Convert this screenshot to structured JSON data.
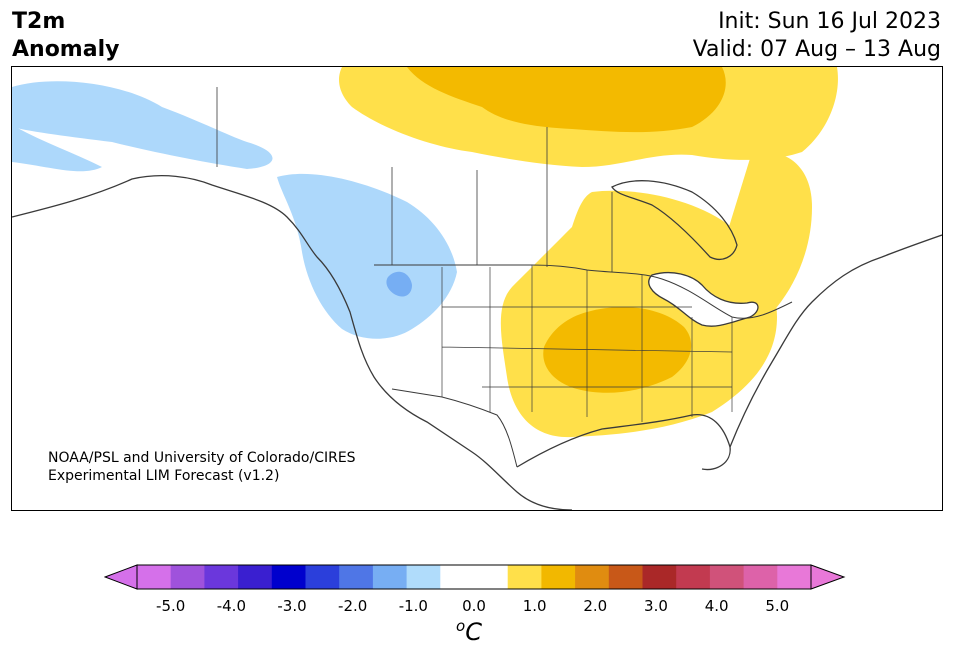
{
  "title": {
    "line1": "T2m",
    "line2": "Anomaly"
  },
  "dates": {
    "init": "Init: Sun 16 Jul 2023",
    "valid": "Valid: 07 Aug – 13 Aug"
  },
  "credit": {
    "line1": "NOAA/PSL and University of Colorado/CIRES",
    "line2": "Experimental LIM Forecast (v1.2)"
  },
  "colorbar": {
    "unit_main": "C",
    "unit_sup": "o",
    "ticks": [
      "-5.0",
      "-4.0",
      "-3.0",
      "-2.0",
      "-1.0",
      "0.0",
      "1.0",
      "2.0",
      "3.0",
      "4.0",
      "5.0"
    ],
    "colors": [
      "#d570ea",
      "#9f52dc",
      "#6b37dc",
      "#3a1fd0",
      "#0000cd",
      "#2b3fdb",
      "#4f76e6",
      "#77aef3",
      "#b0dcfb",
      "#ffffff",
      "#ffffff",
      "#ffe04a",
      "#f2b800",
      "#e08c10",
      "#c85818",
      "#aa2828",
      "#c23a50",
      "#d0527a",
      "#dd62a9",
      "#e878d8"
    ],
    "extend_low_color": "#d570ea",
    "extend_high_color": "#e878d8"
  },
  "map_legend_colors": {
    "cool_1": "#add8fb",
    "cool_2": "#76aef3",
    "warm_1": "#ffe04a",
    "warm_2": "#f3ba00"
  }
}
